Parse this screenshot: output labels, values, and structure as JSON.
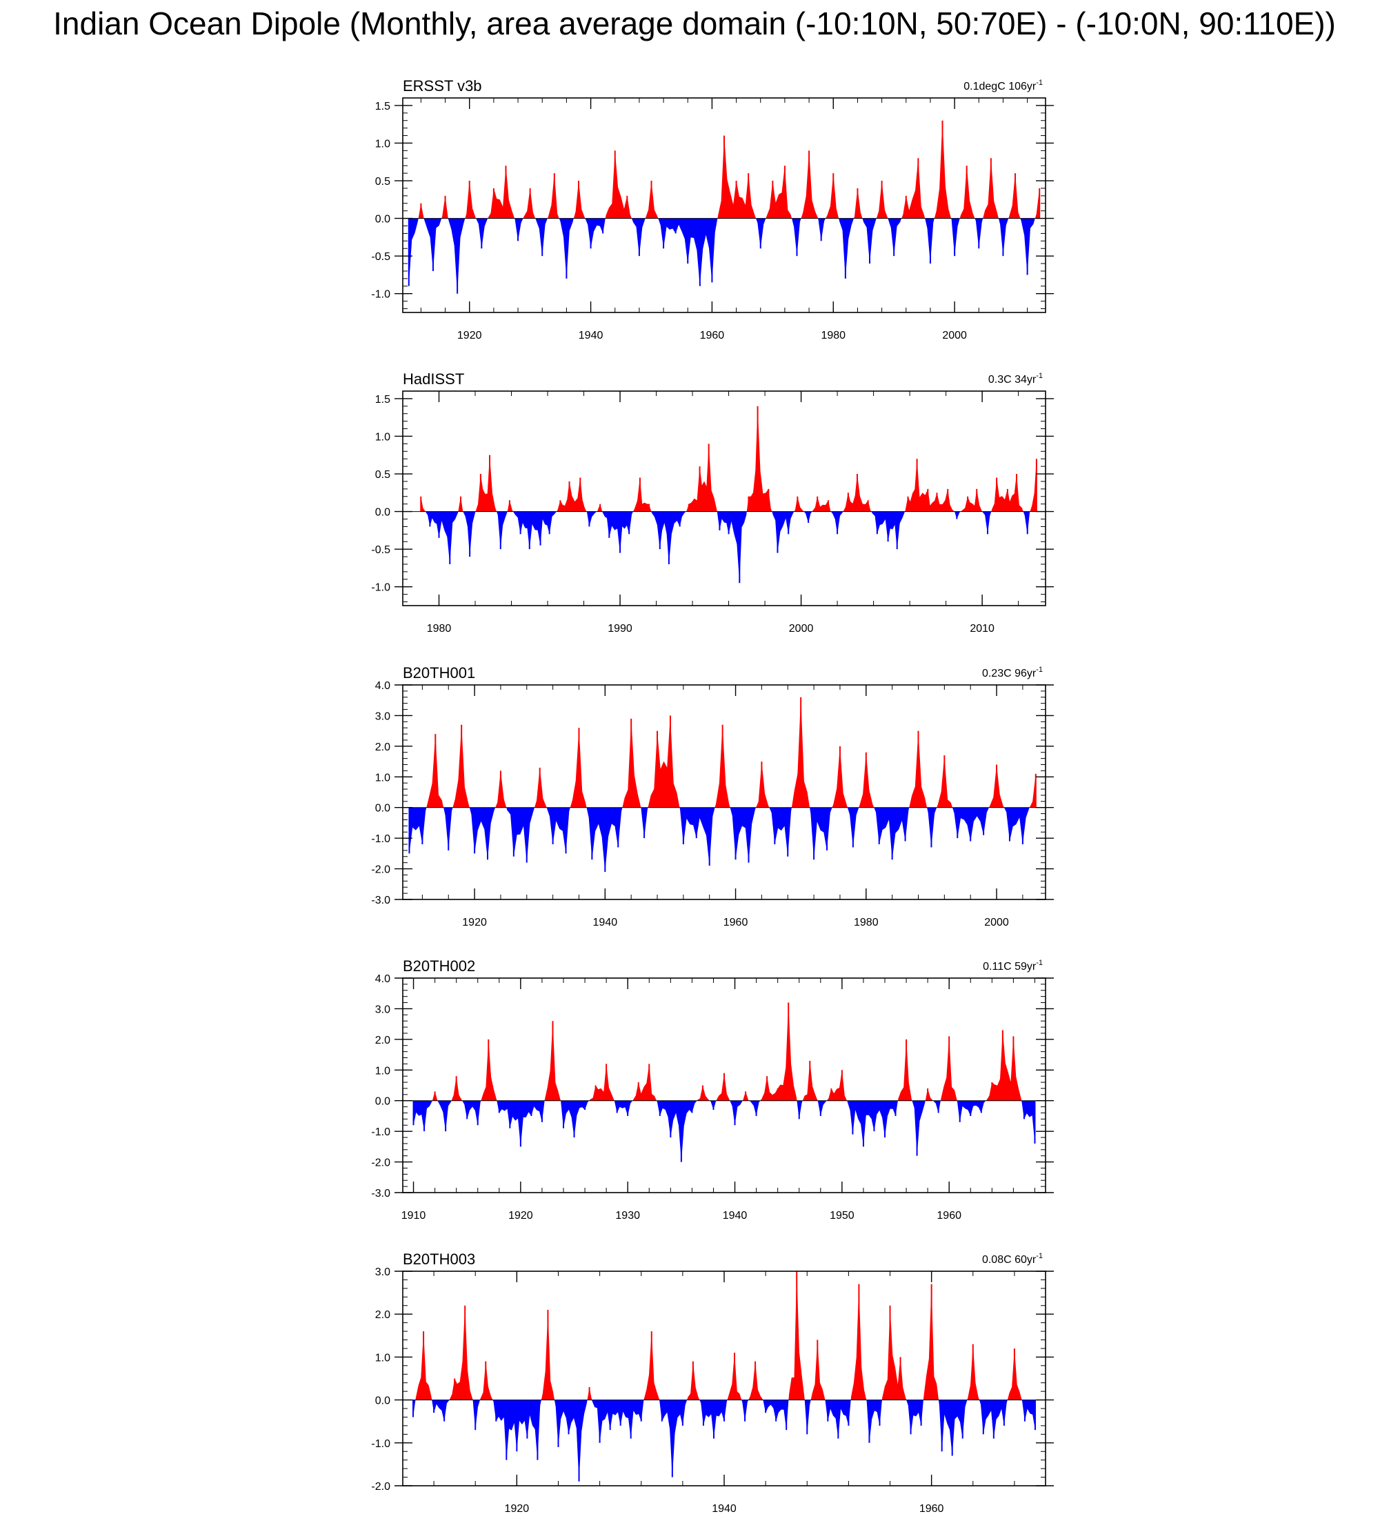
{
  "title": "Indian Ocean Dipole (Monthly, area average domain (-10:10N, 50:70E) - (-10:0N, 90:110E))",
  "colors": {
    "positive": "#ff0000",
    "negative": "#0000ff",
    "frame": "#000000",
    "zero_line": "#000000"
  },
  "chart_data": [
    {
      "type": "area",
      "panel_title": "ERSST v3b",
      "trend": "0.1degC 106yr",
      "trend_exponent": "-1",
      "xlim": [
        1909.0,
        2015.0
      ],
      "ylim": [
        -1.25,
        1.6
      ],
      "xticks": [
        1920,
        1940,
        1960,
        1980,
        2000
      ],
      "yticks": [
        -1.0,
        -0.5,
        0.0,
        0.5,
        1.0,
        1.5
      ],
      "ytick_labels": [
        "-1.0",
        "-0.5",
        "0.0",
        "0.5",
        "1.0",
        "1.5"
      ],
      "fill": "above red / below blue relative to 0",
      "x": [
        1910.0,
        1912.0,
        1914.0,
        1916.0,
        1918.0,
        1920.0,
        1922.0,
        1924.0,
        1926.0,
        1928.0,
        1930.0,
        1932.0,
        1934.0,
        1936.0,
        1938.0,
        1940.0,
        1942.0,
        1944.0,
        1946.0,
        1948.0,
        1950.0,
        1952.0,
        1954.0,
        1956.0,
        1958.0,
        1960.0,
        1962.0,
        1964.0,
        1966.0,
        1968.0,
        1970.0,
        1972.0,
        1974.0,
        1976.0,
        1978.0,
        1980.0,
        1982.0,
        1984.0,
        1986.0,
        1988.0,
        1990.0,
        1992.0,
        1994.0,
        1996.0,
        1998.0,
        2000.0,
        2002.0,
        2004.0,
        2006.0,
        2008.0,
        2010.0,
        2012.0,
        2014.0
      ],
      "y": [
        -0.9,
        0.2,
        -0.7,
        0.3,
        -1.0,
        0.5,
        -0.4,
        0.4,
        0.7,
        -0.3,
        0.4,
        -0.5,
        0.6,
        -0.8,
        0.5,
        -0.4,
        -0.2,
        0.9,
        0.3,
        -0.5,
        0.5,
        -0.4,
        -0.2,
        -0.6,
        -0.9,
        -0.85,
        1.1,
        0.5,
        0.6,
        -0.4,
        0.5,
        0.7,
        -0.5,
        0.9,
        -0.3,
        0.6,
        -0.8,
        0.4,
        -0.6,
        0.5,
        -0.5,
        0.3,
        0.8,
        -0.6,
        1.3,
        -0.5,
        0.7,
        -0.4,
        0.8,
        -0.5,
        0.6,
        -0.75,
        0.4
      ]
    },
    {
      "type": "area",
      "panel_title": "HadISST",
      "trend": "0.3C 34yr",
      "trend_exponent": "-1",
      "xlim": [
        1978.0,
        2013.5
      ],
      "ylim": [
        -1.25,
        1.6
      ],
      "xticks": [
        1980,
        1990,
        2000,
        2010
      ],
      "yticks": [
        -1.0,
        -0.5,
        0.0,
        0.5,
        1.0,
        1.5
      ],
      "ytick_labels": [
        "-1.0",
        "-0.5",
        "0.0",
        "0.5",
        "1.0",
        "1.5"
      ],
      "fill": "above red / below blue relative to 0",
      "x": [
        1979.0,
        1979.5,
        1980.0,
        1980.6,
        1981.2,
        1981.7,
        1982.3,
        1982.8,
        1983.4,
        1983.9,
        1984.5,
        1985.0,
        1985.6,
        1986.1,
        1986.7,
        1987.2,
        1987.8,
        1988.3,
        1988.9,
        1989.4,
        1990.0,
        1990.5,
        1991.1,
        1991.6,
        1992.2,
        1992.7,
        1993.3,
        1993.8,
        1994.4,
        1994.9,
        1995.5,
        1996.0,
        1996.6,
        1997.1,
        1997.6,
        1998.2,
        1998.7,
        1999.3,
        1999.8,
        2000.4,
        2000.9,
        2001.5,
        2002.0,
        2002.6,
        2003.1,
        2003.7,
        2004.2,
        2004.8,
        2005.3,
        2005.9,
        2006.4,
        2007.0,
        2007.5,
        2008.1,
        2008.6,
        2009.2,
        2009.7,
        2010.3,
        2010.8,
        2011.4,
        2011.9,
        2012.5,
        2013.0
      ],
      "y": [
        0.2,
        -0.2,
        -0.35,
        -0.7,
        0.2,
        -0.6,
        0.5,
        0.75,
        -0.5,
        0.15,
        -0.3,
        -0.5,
        -0.45,
        -0.3,
        0.15,
        0.4,
        0.45,
        -0.2,
        0.1,
        -0.35,
        -0.55,
        -0.3,
        0.45,
        0.1,
        -0.5,
        -0.7,
        -0.2,
        0.1,
        0.6,
        0.9,
        -0.25,
        -0.3,
        -0.95,
        0.2,
        1.4,
        0.3,
        -0.55,
        -0.3,
        0.2,
        -0.15,
        0.2,
        0.15,
        -0.3,
        0.25,
        0.5,
        0.15,
        -0.3,
        -0.4,
        -0.5,
        0.2,
        0.7,
        0.3,
        0.25,
        0.3,
        -0.1,
        0.2,
        0.3,
        -0.3,
        0.45,
        0.3,
        0.5,
        -0.3,
        0.7
      ]
    },
    {
      "type": "area",
      "panel_title": "B20TH001",
      "trend": "0.23C 96yr",
      "trend_exponent": "-1",
      "xlim": [
        1909.0,
        2007.5
      ],
      "ylim": [
        -3.0,
        4.0
      ],
      "xticks": [
        1920,
        1940,
        1960,
        1980,
        2000
      ],
      "yticks": [
        -3.0,
        -2.0,
        -1.0,
        0.0,
        1.0,
        2.0,
        3.0,
        4.0
      ],
      "ytick_labels": [
        "-3.0",
        "-2.0",
        "-1.0",
        "0.0",
        "1.0",
        "2.0",
        "3.0",
        "4.0"
      ],
      "fill": "above red / below blue relative to 0",
      "x": [
        1910.0,
        1912.0,
        1914.0,
        1916.0,
        1918.0,
        1920.0,
        1922.0,
        1924.0,
        1926.0,
        1928.0,
        1930.0,
        1932.0,
        1934.0,
        1936.0,
        1938.0,
        1940.0,
        1942.0,
        1944.0,
        1946.0,
        1948.0,
        1950.0,
        1952.0,
        1954.0,
        1956.0,
        1958.0,
        1960.0,
        1962.0,
        1964.0,
        1966.0,
        1968.0,
        1970.0,
        1972.0,
        1974.0,
        1976.0,
        1978.0,
        1980.0,
        1982.0,
        1984.0,
        1986.0,
        1988.0,
        1990.0,
        1992.0,
        1994.0,
        1996.0,
        1998.0,
        2000.0,
        2002.0,
        2004.0,
        2006.0
      ],
      "y": [
        -1.5,
        -1.2,
        2.4,
        -1.4,
        2.7,
        -1.5,
        -1.7,
        1.2,
        -1.6,
        -1.8,
        1.3,
        -1.2,
        -1.5,
        2.6,
        -1.7,
        -2.1,
        -1.3,
        2.9,
        -1.0,
        2.5,
        3.0,
        -1.2,
        -1.0,
        -1.9,
        2.7,
        -1.7,
        -1.8,
        1.5,
        -1.2,
        -1.6,
        3.6,
        -1.7,
        -1.4,
        2.0,
        -1.3,
        1.8,
        -1.2,
        -1.7,
        -1.1,
        2.5,
        -1.3,
        1.7,
        -1.0,
        -1.1,
        -0.9,
        1.4,
        -1.1,
        -1.2,
        1.1
      ]
    },
    {
      "type": "area",
      "panel_title": "B20TH002",
      "trend": "0.11C 59yr",
      "trend_exponent": "-1",
      "xlim": [
        1909.0,
        1969.0
      ],
      "ylim": [
        -3.0,
        4.0
      ],
      "xticks": [
        1910,
        1920,
        1930,
        1940,
        1950,
        1960
      ],
      "yticks": [
        -3.0,
        -2.0,
        -1.0,
        0.0,
        1.0,
        2.0,
        3.0,
        4.0
      ],
      "ytick_labels": [
        "-3.0",
        "-2.0",
        "-1.0",
        "0.0",
        "1.0",
        "2.0",
        "3.0",
        "4.0"
      ],
      "fill": "above red / below blue relative to 0",
      "x": [
        1910.0,
        1911.0,
        1912.0,
        1913.0,
        1914.0,
        1915.0,
        1916.0,
        1917.0,
        1918.0,
        1919.0,
        1920.0,
        1921.0,
        1922.0,
        1923.0,
        1924.0,
        1925.0,
        1926.0,
        1927.0,
        1928.0,
        1929.0,
        1930.0,
        1931.0,
        1932.0,
        1933.0,
        1934.0,
        1935.0,
        1936.0,
        1937.0,
        1938.0,
        1939.0,
        1940.0,
        1941.0,
        1942.0,
        1943.0,
        1944.0,
        1945.0,
        1946.0,
        1947.0,
        1948.0,
        1949.0,
        1950.0,
        1951.0,
        1952.0,
        1953.0,
        1954.0,
        1955.0,
        1956.0,
        1957.0,
        1958.0,
        1959.0,
        1960.0,
        1961.0,
        1962.0,
        1963.0,
        1964.0,
        1965.0,
        1966.0,
        1967.0,
        1968.0
      ],
      "y": [
        -0.8,
        -1.0,
        0.3,
        -1.0,
        0.8,
        -0.6,
        -0.8,
        2.0,
        -0.4,
        -0.9,
        -1.5,
        -0.5,
        -0.7,
        2.6,
        -0.9,
        -1.2,
        -0.3,
        0.5,
        1.2,
        -0.4,
        -0.5,
        0.6,
        1.2,
        -0.5,
        -1.2,
        -2.0,
        -0.4,
        0.5,
        -0.3,
        0.9,
        -0.8,
        0.3,
        -0.5,
        0.8,
        0.4,
        3.2,
        -0.6,
        1.3,
        -0.5,
        0.4,
        1.0,
        -1.1,
        -1.5,
        -1.0,
        -1.2,
        -0.5,
        2.0,
        -1.8,
        0.4,
        -0.4,
        2.1,
        -0.7,
        -0.5,
        -0.4,
        0.6,
        2.3,
        2.1,
        -0.6,
        -1.4
      ]
    },
    {
      "type": "area",
      "panel_title": "B20TH003",
      "trend": "0.08C 60yr",
      "trend_exponent": "-1",
      "xlim": [
        1909.0,
        1971.0
      ],
      "ylim": [
        -2.0,
        3.0
      ],
      "xticks": [
        1920,
        1940,
        1960
      ],
      "yticks": [
        -2.0,
        -1.0,
        0.0,
        1.0,
        2.0,
        3.0
      ],
      "ytick_labels": [
        "-2.0",
        "-1.0",
        "0.0",
        "1.0",
        "2.0",
        "3.0"
      ],
      "fill": "above red / below blue relative to 0",
      "x": [
        1910.0,
        1911.0,
        1912.0,
        1913.0,
        1914.0,
        1915.0,
        1916.0,
        1917.0,
        1918.0,
        1919.0,
        1920.0,
        1921.0,
        1922.0,
        1923.0,
        1924.0,
        1925.0,
        1926.0,
        1927.0,
        1928.0,
        1929.0,
        1930.0,
        1931.0,
        1932.0,
        1933.0,
        1934.0,
        1935.0,
        1936.0,
        1937.0,
        1938.0,
        1939.0,
        1940.0,
        1941.0,
        1942.0,
        1943.0,
        1944.0,
        1945.0,
        1946.0,
        1947.0,
        1948.0,
        1949.0,
        1950.0,
        1951.0,
        1952.0,
        1953.0,
        1954.0,
        1955.0,
        1956.0,
        1957.0,
        1958.0,
        1959.0,
        1960.0,
        1961.0,
        1962.0,
        1963.0,
        1964.0,
        1965.0,
        1966.0,
        1967.0,
        1968.0,
        1969.0,
        1970.0
      ],
      "y": [
        -0.4,
        1.6,
        -0.3,
        -0.5,
        0.5,
        2.2,
        -0.7,
        0.9,
        -0.5,
        -1.4,
        -1.2,
        -0.9,
        -1.4,
        2.1,
        -1.1,
        -0.8,
        -1.9,
        0.3,
        -1.0,
        -0.7,
        -0.6,
        -0.9,
        -0.5,
        1.6,
        -0.5,
        -1.8,
        -0.6,
        0.9,
        -0.6,
        -0.9,
        -0.5,
        1.1,
        -0.5,
        0.9,
        -0.3,
        -0.5,
        -0.7,
        3.0,
        -0.8,
        1.4,
        -0.5,
        -0.9,
        -0.6,
        2.7,
        -1.0,
        -0.6,
        2.2,
        1.0,
        -0.8,
        -0.6,
        2.7,
        -1.2,
        -1.3,
        -0.9,
        1.3,
        -0.8,
        -0.9,
        -0.6,
        1.2,
        -0.5,
        -0.7
      ]
    }
  ]
}
